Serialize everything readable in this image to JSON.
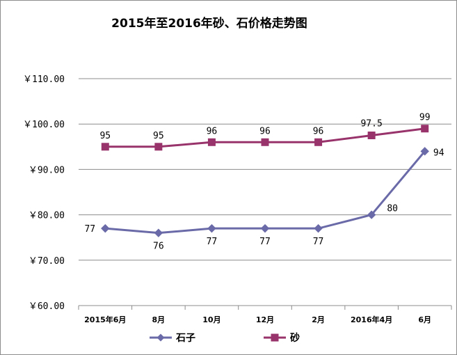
{
  "chart_data": {
    "type": "line",
    "title": "2015年至2016年砂、石价格走势图",
    "categories": [
      "2015年6月",
      "8月",
      "10月",
      "12月",
      "2月",
      "2016年4月",
      "6月"
    ],
    "y_tick_labels": [
      "￥60.00",
      "￥70.00",
      "￥80.00",
      "￥90.00",
      "￥100.00",
      "￥110.00"
    ],
    "ylim": [
      60,
      110
    ],
    "grid": true,
    "legend_position": "bottom",
    "series": [
      {
        "name": "石子",
        "color": "#6a6aa8",
        "marker": "diamond",
        "values": [
          77,
          76,
          77,
          77,
          77,
          80,
          94
        ],
        "labels": [
          "77",
          "76",
          "77",
          "77",
          "77",
          "80",
          "94"
        ]
      },
      {
        "name": "砂",
        "color": "#99336b",
        "marker": "square",
        "values": [
          95,
          95,
          96,
          96,
          96,
          97.5,
          99
        ],
        "labels": [
          "95",
          "95",
          "96",
          "96",
          "96",
          "97.5",
          "99"
        ]
      }
    ]
  }
}
